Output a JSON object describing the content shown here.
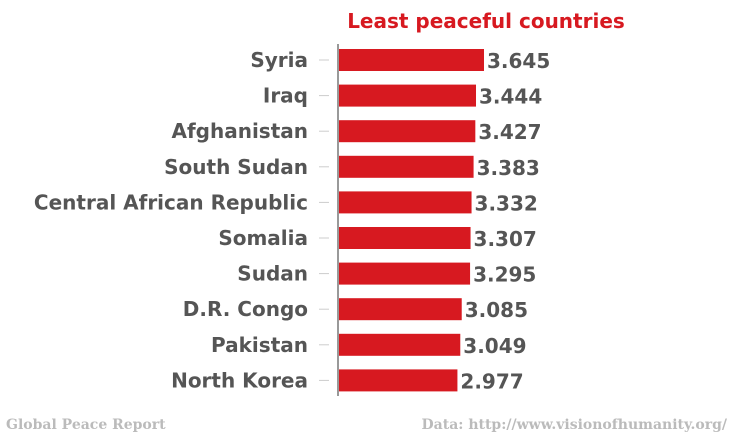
{
  "colors": {
    "bar": "#d71920",
    "title": "#d71920",
    "label": "#555555",
    "footer": "#bbbbbb",
    "axis": "#333333",
    "tick": "#cccccc"
  },
  "footer": {
    "left": "Global Peace Report",
    "right": "Data: http://www.visionofhumanity.org/"
  },
  "chart_data": {
    "type": "bar",
    "orientation": "horizontal",
    "title": "Least peaceful countries",
    "xlabel": "",
    "ylabel": "",
    "grid": false,
    "xlim": [
      0,
      3.645
    ],
    "categories": [
      "Syria",
      "Iraq",
      "Afghanistan",
      "South Sudan",
      "Central African Republic",
      "Somalia",
      "Sudan",
      "D.R. Congo",
      "Pakistan",
      "North Korea"
    ],
    "values": [
      3.645,
      3.444,
      3.427,
      3.383,
      3.332,
      3.307,
      3.295,
      3.085,
      3.049,
      2.977
    ],
    "value_labels": [
      "3.645",
      "3.444",
      "3.427",
      "3.383",
      "3.332",
      "3.307",
      "3.295",
      "3.085",
      "3.049",
      "2.977"
    ]
  }
}
